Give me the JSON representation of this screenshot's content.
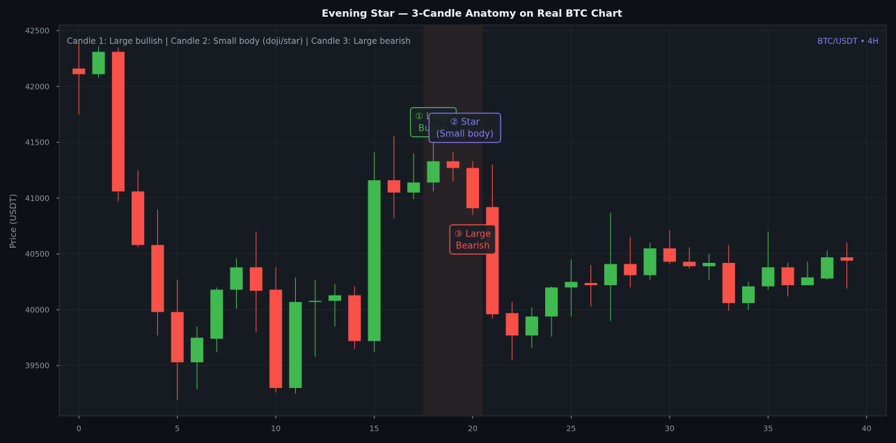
{
  "chart_data": {
    "type": "candlestick",
    "title": "Evening Star — 3-Candle Anatomy on Real BTC Chart",
    "subtitle": "Candle 1: Large bullish | Candle 2: Small body (doji/star) | Candle 3: Large bearish",
    "badge": "BTC/USDT • 4H",
    "xlabel": "",
    "ylabel": "Price (USDT)",
    "xlim": [
      -1,
      41
    ],
    "ylim": [
      39050,
      42550
    ],
    "xticks": [
      0,
      5,
      10,
      15,
      20,
      25,
      30,
      35,
      40
    ],
    "yticks": [
      39500,
      40000,
      40500,
      41000,
      41500,
      42000,
      42500
    ],
    "grid": true,
    "highlight_range": [
      17.5,
      20.5
    ],
    "colors": {
      "background": "#0d1117",
      "plot_background": "#161b22",
      "bullish": "#3fb950",
      "bearish": "#f85149",
      "accent": "#8b7cf6",
      "grid": "#21262d",
      "highlight": "#2a2326"
    },
    "candles": [
      {
        "x": 0,
        "open": 42160,
        "high": 42400,
        "low": 41750,
        "close": 42110
      },
      {
        "x": 1,
        "open": 42110,
        "high": 42360,
        "low": 42080,
        "close": 42310
      },
      {
        "x": 2,
        "open": 42310,
        "high": 42350,
        "low": 40970,
        "close": 41060
      },
      {
        "x": 3,
        "open": 41060,
        "high": 41250,
        "low": 40560,
        "close": 40580
      },
      {
        "x": 4,
        "open": 40580,
        "high": 40900,
        "low": 39770,
        "close": 39980
      },
      {
        "x": 5,
        "open": 39980,
        "high": 40270,
        "low": 39190,
        "close": 39530
      },
      {
        "x": 6,
        "open": 39530,
        "high": 39850,
        "low": 39290,
        "close": 39750
      },
      {
        "x": 7,
        "open": 39740,
        "high": 40200,
        "low": 39620,
        "close": 40180
      },
      {
        "x": 8,
        "open": 40180,
        "high": 40460,
        "low": 40010,
        "close": 40380
      },
      {
        "x": 9,
        "open": 40380,
        "high": 40700,
        "low": 39800,
        "close": 40170
      },
      {
        "x": 10,
        "open": 40180,
        "high": 40380,
        "low": 39260,
        "close": 39300
      },
      {
        "x": 11,
        "open": 39300,
        "high": 40290,
        "low": 39250,
        "close": 40070
      },
      {
        "x": 12,
        "open": 40070,
        "high": 40270,
        "low": 39580,
        "close": 40080
      },
      {
        "x": 13,
        "open": 40080,
        "high": 40230,
        "low": 39850,
        "close": 40130
      },
      {
        "x": 14,
        "open": 40130,
        "high": 40210,
        "low": 39650,
        "close": 39720
      },
      {
        "x": 15,
        "open": 39720,
        "high": 41410,
        "low": 39620,
        "close": 41160
      },
      {
        "x": 16,
        "open": 41160,
        "high": 41560,
        "low": 40820,
        "close": 41050
      },
      {
        "x": 17,
        "open": 41050,
        "high": 41400,
        "low": 40990,
        "close": 41140
      },
      {
        "x": 18,
        "open": 41140,
        "high": 41510,
        "low": 41060,
        "close": 41330
      },
      {
        "x": 19,
        "open": 41330,
        "high": 41410,
        "low": 41150,
        "close": 41270
      },
      {
        "x": 20,
        "open": 41270,
        "high": 41330,
        "low": 40850,
        "close": 40910
      },
      {
        "x": 21,
        "open": 40920,
        "high": 41300,
        "low": 39920,
        "close": 39960
      },
      {
        "x": 22,
        "open": 39970,
        "high": 40070,
        "low": 39550,
        "close": 39770
      },
      {
        "x": 23,
        "open": 39770,
        "high": 40020,
        "low": 39660,
        "close": 39940
      },
      {
        "x": 24,
        "open": 39940,
        "high": 40210,
        "low": 39760,
        "close": 40200
      },
      {
        "x": 25,
        "open": 40200,
        "high": 40450,
        "low": 39940,
        "close": 40250
      },
      {
        "x": 26,
        "open": 40240,
        "high": 40400,
        "low": 40030,
        "close": 40220
      },
      {
        "x": 27,
        "open": 40220,
        "high": 40870,
        "low": 39900,
        "close": 40410
      },
      {
        "x": 28,
        "open": 40410,
        "high": 40650,
        "low": 40200,
        "close": 40310
      },
      {
        "x": 29,
        "open": 40310,
        "high": 40600,
        "low": 40270,
        "close": 40550
      },
      {
        "x": 30,
        "open": 40550,
        "high": 40710,
        "low": 40410,
        "close": 40430
      },
      {
        "x": 31,
        "open": 40430,
        "high": 40560,
        "low": 40370,
        "close": 40390
      },
      {
        "x": 32,
        "open": 40390,
        "high": 40500,
        "low": 40270,
        "close": 40420
      },
      {
        "x": 33,
        "open": 40420,
        "high": 40580,
        "low": 39990,
        "close": 40060
      },
      {
        "x": 34,
        "open": 40060,
        "high": 40250,
        "low": 40000,
        "close": 40210
      },
      {
        "x": 35,
        "open": 40210,
        "high": 40700,
        "low": 40180,
        "close": 40380
      },
      {
        "x": 36,
        "open": 40380,
        "high": 40420,
        "low": 40120,
        "close": 40220
      },
      {
        "x": 37,
        "open": 40220,
        "high": 40430,
        "low": 40220,
        "close": 40290
      },
      {
        "x": 38,
        "open": 40280,
        "high": 40530,
        "low": 40270,
        "close": 40470
      },
      {
        "x": 39,
        "open": 40470,
        "high": 40600,
        "low": 40190,
        "close": 40440
      }
    ],
    "annotations": [
      {
        "id": "candle1",
        "lines": [
          "① Large",
          "Bullish"
        ],
        "x": 18,
        "y": 41680,
        "color": "#3fb950"
      },
      {
        "id": "candle2",
        "lines": [
          "② Star",
          "(Small body)"
        ],
        "x": 19.6,
        "y": 41630,
        "color": "#8b7cf6"
      },
      {
        "id": "candle3",
        "lines": [
          "③ Large",
          "Bearish"
        ],
        "x": 20,
        "y": 40630,
        "color": "#f85149"
      }
    ]
  }
}
